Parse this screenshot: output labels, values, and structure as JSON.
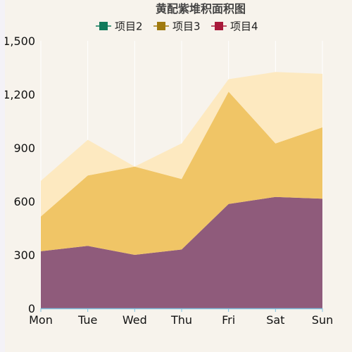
{
  "chart_data": {
    "type": "area",
    "stacked": true,
    "title": "黄配紫堆积面积图",
    "categories": [
      "Mon",
      "Tue",
      "Wed",
      "Thu",
      "Fri",
      "Sat",
      "Sun"
    ],
    "ylim": [
      0,
      1500
    ],
    "yticks": [
      0,
      300,
      600,
      900,
      1200,
      1500
    ],
    "ytick_labels": [
      "0",
      "300",
      "600",
      "900",
      "1,200",
      "1,500"
    ],
    "grid": {
      "vertical": true,
      "horizontal": false
    },
    "legend_position": "top-center",
    "series": [
      {
        "name": "项目2",
        "values": [
          320,
          350,
          300,
          330,
          585,
          625,
          615
        ],
        "fill": "#8f5b7b",
        "legend_color": "#117a5b"
      },
      {
        "name": "项目3",
        "values": [
          195,
          395,
          495,
          395,
          630,
          300,
          400
        ],
        "fill": "#f0c566",
        "legend_color": "#a07a0f"
      },
      {
        "name": "项目4",
        "values": [
          200,
          200,
          0,
          200,
          70,
          400,
          300
        ],
        "fill": "#fde9c0",
        "legend_color": "#a8193a"
      }
    ]
  }
}
